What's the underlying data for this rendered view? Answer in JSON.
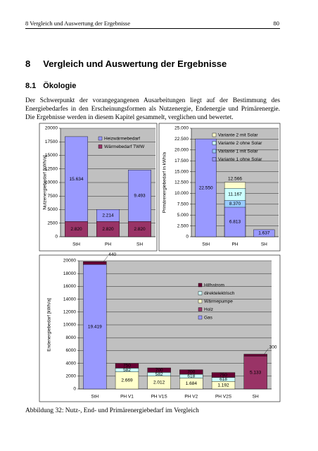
{
  "header": {
    "title": "8 Vergleich und Auswertung der Ergebnisse",
    "page": "80"
  },
  "heading": {
    "number": "8",
    "title": "Vergleich und Auswertung der Ergebnisse"
  },
  "section": {
    "number": "8.1",
    "title": "Ökologie"
  },
  "paragraph": "Der Schwerpunkt der vorangegangenen Ausarbeitungen liegt auf der Bestimmung des Energiebedarfes in den Erscheinungsformen als Nutzenergie, Endenergie und Primärenergie. Die Ergebnisse werden in diesem Kapitel gesammelt, verglichen und bewertet.",
  "caption": "Abbildung 32: Nutz-, End- und Primärenergiebedarf im Vergleich",
  "chart_data": [
    {
      "type": "bar",
      "stacked": true,
      "ylabel": "Nutzenergiebedarf [kWh/a]",
      "categories": [
        "StH",
        "PH",
        "SH"
      ],
      "series": [
        {
          "name": "Wärmebedarf TWW",
          "color": "#993366",
          "values": [
            2820,
            2820,
            2820
          ],
          "value_labels": [
            "2.820",
            "2.820",
            "2.820"
          ]
        },
        {
          "name": "Heizwärmebedarf",
          "color": "#9999ff",
          "values": [
            15634,
            2214,
            9493
          ],
          "value_labels": [
            "15.634",
            "2.214",
            "9.493"
          ]
        }
      ],
      "ylim": [
        0,
        20000
      ],
      "yticks": [
        0,
        2500,
        5000,
        7500,
        10000,
        12500,
        15000,
        17500,
        20000
      ],
      "grid": true,
      "legend": "upper right"
    },
    {
      "type": "bar",
      "stacked": false,
      "ylabel": "Primärenergiebedarf in kWh/a",
      "categories": [
        "StH",
        "PH",
        "SH"
      ],
      "series": [
        {
          "name": "Variante 1 ohne Solar",
          "color": "#9999ff",
          "values": [
            22550,
            6813,
            1637
          ],
          "value_labels": [
            "22.550",
            "6.813",
            "1.637"
          ]
        },
        {
          "name": "Variante 1 mit Solar",
          "color": "#99ccff",
          "values": [
            null,
            8370,
            null
          ],
          "value_labels": [
            null,
            "8.370",
            null
          ]
        },
        {
          "name": "Variante 2 ohne Solar",
          "color": "#ccffff",
          "values": [
            null,
            11167,
            null
          ],
          "value_labels": [
            null,
            "11.167",
            null
          ]
        },
        {
          "name": "Variante 2 mit Solar",
          "color": "#ffffcc",
          "values": [
            null,
            12566,
            null
          ],
          "value_labels": [
            null,
            "12.566",
            null
          ]
        }
      ],
      "ylim": [
        0,
        25000
      ],
      "yticks": [
        0,
        {
          "value": 2500,
          "label": "2.500"
        },
        {
          "value": 5000,
          "label": "5.000"
        },
        {
          "value": 7500,
          "label": "7.500"
        },
        {
          "value": 10000,
          "label": "10.000"
        },
        {
          "value": 12500,
          "label": "12.500"
        },
        {
          "value": 15000,
          "label": "15.000"
        },
        {
          "value": 17500,
          "label": "17.500"
        },
        {
          "value": 20000,
          "label": "20.000"
        },
        {
          "value": 22500,
          "label": "22.500"
        },
        {
          "value": 25000,
          "label": "25.000"
        }
      ],
      "grid": true,
      "legend": "upper right"
    },
    {
      "type": "bar",
      "stacked": true,
      "ylabel": "Endenergiebedarf [kWh/a]",
      "categories": [
        "StH",
        "PH V1",
        "PH V1S",
        "PH V2",
        "PH V2S",
        "SH"
      ],
      "series": [
        {
          "name": "Gas",
          "color": "#9999ff",
          "values": [
            19419,
            null,
            null,
            null,
            null,
            null
          ],
          "value_labels": [
            "19.419",
            null,
            null,
            null,
            null,
            null
          ]
        },
        {
          "name": "Holz",
          "color": "#993366",
          "values": [
            null,
            null,
            null,
            null,
            null,
            5133
          ],
          "value_labels": [
            null,
            null,
            null,
            null,
            null,
            "5.133"
          ]
        },
        {
          "name": "Wärmepumpe",
          "color": "#ffffcc",
          "values": [
            null,
            2669,
            2012,
            1684,
            1192,
            null
          ],
          "value_labels": [
            null,
            "2.669",
            "2.012",
            "1.684",
            "1.192",
            null
          ]
        },
        {
          "name": "direktelektrisch",
          "color": "#ccffff",
          "values": [
            null,
            582,
            582,
            618,
            618,
            null
          ]
        },
        {
          "name": "Hilfsstrom",
          "color": "#660033",
          "values": [
            440,
            750,
            700,
            700,
            750,
            300
          ]
        }
      ],
      "ylim": [
        0,
        20000
      ],
      "yticks": [
        0,
        2000,
        4000,
        6000,
        8000,
        10000,
        12000,
        14000,
        16000,
        18000,
        20000
      ],
      "grid": true,
      "legend": "upper right"
    }
  ]
}
